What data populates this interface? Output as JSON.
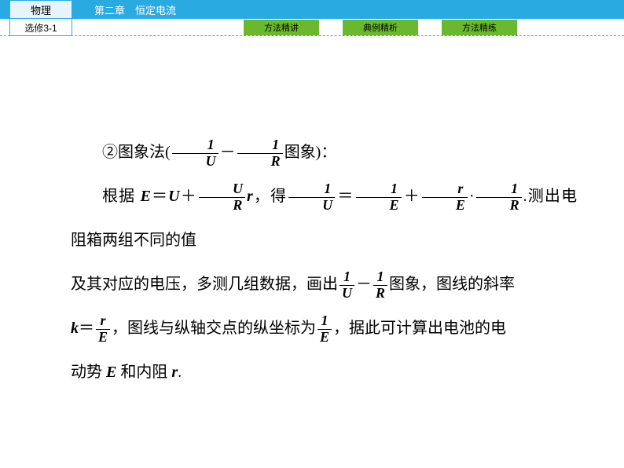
{
  "header": {
    "chapter_title": "第二章　恒定电流",
    "subject": "物理",
    "edition": "选修3-1"
  },
  "tabs": [
    {
      "label": "方法精讲"
    },
    {
      "label": "典例精析"
    },
    {
      "label": "方法精练"
    }
  ],
  "body": {
    "line1_prefix": "②图象法(",
    "line1_suffix": "图象)：",
    "line2_a": "根据 ",
    "line2_b": "E",
    "line2_c": "＝",
    "line2_d": "U",
    "line2_e": "＋",
    "line2_f": "r",
    "line2_g": "，得",
    "line2_h": "＝",
    "line2_i": "＋",
    "line2_j": "·",
    "line2_k": ".测出电阻箱两组不同的值",
    "line3_a": "及其对应的电压，多测几组数据，画出",
    "line3_b": "图象，图线的斜率",
    "line4_a": "k",
    "line4_b": "＝",
    "line4_c": "，图线与纵轴交点的纵坐标为",
    "line4_d": "，据此可计算出电池的电",
    "line5_a": "动势 ",
    "line5_b": "E",
    "line5_c": " 和内阻 ",
    "line5_d": "r",
    "line5_e": "."
  },
  "fractions": {
    "f1": {
      "num": "1",
      "den": "U"
    },
    "f2": {
      "num": "1",
      "den": "R"
    },
    "f3": {
      "num": "U",
      "den": "R"
    },
    "f4": {
      "num": "1",
      "den": "U"
    },
    "f5": {
      "num": "1",
      "den": "E"
    },
    "f6": {
      "num": "r",
      "den": "E"
    },
    "f7": {
      "num": "1",
      "den": "R"
    },
    "f8": {
      "num": "1",
      "den": "U"
    },
    "f9": {
      "num": "1",
      "den": "R"
    },
    "f10": {
      "num": "r",
      "den": "E"
    },
    "f11": {
      "num": "1",
      "den": "E"
    }
  },
  "colors": {
    "header_bg": "#29abe2",
    "tab_bg": "#6ab82e",
    "page_bg": "#ffffff",
    "text": "#000000",
    "subject_top_bg": "#e8f4fb"
  }
}
